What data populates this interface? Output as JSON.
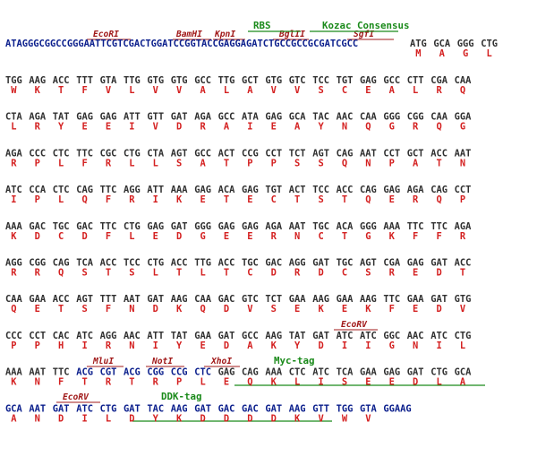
{
  "colors": {
    "nt_default": "#2f2f2f",
    "nt_vector": "#0a1e8c",
    "amino_acid": "#d42020",
    "restriction_site": "#a01818",
    "feature": "#1a8a1a"
  },
  "map": {
    "row1_5prime": "ATAGGGCGGCCGGGAATTCGTCGACTGGATCCGGTACCGAGGAGATCTGCCGCCGCGATCGCC",
    "row1_codons": [
      "ATG",
      "GCA",
      "GGG",
      "CTG"
    ],
    "row1_aa": [
      "M",
      "A",
      "G",
      "L"
    ],
    "rows": [
      {
        "codons": [
          "TGG",
          "AAG",
          "ACC",
          "TTT",
          "GTA",
          "TTG",
          "GTG",
          "GTG",
          "GCC",
          "TTG",
          "GCT",
          "GTG",
          "GTC",
          "TCC",
          "TGT",
          "GAG",
          "GCC",
          "CTT",
          "CGA",
          "CAA"
        ],
        "aa": [
          "W",
          "K",
          "T",
          "F",
          "V",
          "L",
          "V",
          "V",
          "A",
          "L",
          "A",
          "V",
          "V",
          "S",
          "C",
          "E",
          "A",
          "L",
          "R",
          "Q"
        ]
      },
      {
        "codons": [
          "CTA",
          "AGA",
          "TAT",
          "GAG",
          "GAG",
          "ATT",
          "GTT",
          "GAT",
          "AGA",
          "GCC",
          "ATA",
          "GAG",
          "GCA",
          "TAC",
          "AAC",
          "CAA",
          "GGG",
          "CGG",
          "CAA",
          "GGA"
        ],
        "aa": [
          "L",
          "R",
          "Y",
          "E",
          "E",
          "I",
          "V",
          "D",
          "R",
          "A",
          "I",
          "E",
          "A",
          "Y",
          "N",
          "Q",
          "G",
          "R",
          "Q",
          "G"
        ]
      },
      {
        "codons": [
          "AGA",
          "CCC",
          "CTC",
          "TTC",
          "CGC",
          "CTG",
          "CTA",
          "AGT",
          "GCC",
          "ACT",
          "CCG",
          "CCT",
          "TCT",
          "AGT",
          "CAG",
          "AAT",
          "CCT",
          "GCT",
          "ACC",
          "AAT"
        ],
        "aa": [
          "R",
          "P",
          "L",
          "F",
          "R",
          "L",
          "L",
          "S",
          "A",
          "T",
          "P",
          "P",
          "S",
          "S",
          "Q",
          "N",
          "P",
          "A",
          "T",
          "N"
        ]
      },
      {
        "codons": [
          "ATC",
          "CCA",
          "CTC",
          "CAG",
          "TTC",
          "AGG",
          "ATT",
          "AAA",
          "GAG",
          "ACA",
          "GAG",
          "TGT",
          "ACT",
          "TCC",
          "ACC",
          "CAG",
          "GAG",
          "AGA",
          "CAG",
          "CCT"
        ],
        "aa": [
          "I",
          "P",
          "L",
          "Q",
          "F",
          "R",
          "I",
          "K",
          "E",
          "T",
          "E",
          "C",
          "T",
          "S",
          "T",
          "Q",
          "E",
          "R",
          "Q",
          "P"
        ]
      },
      {
        "codons": [
          "AAA",
          "GAC",
          "TGC",
          "GAC",
          "TTC",
          "CTG",
          "GAG",
          "GAT",
          "GGG",
          "GAG",
          "GAG",
          "AGA",
          "AAT",
          "TGC",
          "ACA",
          "GGG",
          "AAA",
          "TTC",
          "TTC",
          "AGA"
        ],
        "aa": [
          "K",
          "D",
          "C",
          "D",
          "F",
          "L",
          "E",
          "D",
          "G",
          "E",
          "E",
          "R",
          "N",
          "C",
          "T",
          "G",
          "K",
          "F",
          "F",
          "R"
        ]
      },
      {
        "codons": [
          "AGG",
          "CGG",
          "CAG",
          "TCA",
          "ACC",
          "TCC",
          "CTG",
          "ACC",
          "TTG",
          "ACC",
          "TGC",
          "GAC",
          "AGG",
          "GAT",
          "TGC",
          "AGT",
          "CGA",
          "GAG",
          "GAT",
          "ACC"
        ],
        "aa": [
          "R",
          "R",
          "Q",
          "S",
          "T",
          "S",
          "L",
          "T",
          "L",
          "T",
          "C",
          "D",
          "R",
          "D",
          "C",
          "S",
          "R",
          "E",
          "D",
          "T"
        ]
      },
      {
        "codons": [
          "CAA",
          "GAA",
          "ACC",
          "AGT",
          "TTT",
          "AAT",
          "GAT",
          "AAG",
          "CAA",
          "GAC",
          "GTC",
          "TCT",
          "GAA",
          "AAG",
          "GAA",
          "AAG",
          "TTC",
          "GAA",
          "GAT",
          "GTG"
        ],
        "aa": [
          "Q",
          "E",
          "T",
          "S",
          "F",
          "N",
          "D",
          "K",
          "Q",
          "D",
          "V",
          "S",
          "E",
          "K",
          "E",
          "K",
          "F",
          "E",
          "D",
          "V"
        ]
      },
      {
        "codons": [
          "CCC",
          "CCT",
          "CAC",
          "ATC",
          "AGG",
          "AAC",
          "ATT",
          "TAT",
          "GAA",
          "GAT",
          "GCC",
          "AAG",
          "TAT",
          "GAT",
          "ATC",
          "ATC",
          "GGC",
          "AAC",
          "ATC",
          "CTG"
        ],
        "aa": [
          "P",
          "P",
          "H",
          "I",
          "R",
          "N",
          "I",
          "Y",
          "E",
          "D",
          "A",
          "K",
          "Y",
          "D",
          "I",
          "I",
          "G",
          "N",
          "I",
          "L"
        ]
      },
      {
        "codons": [
          "AAA",
          "AAT",
          "TTC",
          "ACG",
          "CGT",
          "ACG",
          "CGG",
          "CCG",
          "CTC",
          "GAG",
          "CAG",
          "AAA",
          "CTC",
          "ATC",
          "TCA",
          "GAA",
          "GAG",
          "GAT",
          "CTG",
          "GCA"
        ],
        "aa": [
          "K",
          "N",
          "F",
          "T",
          "R",
          "T",
          "R",
          "P",
          "L",
          "E",
          "Q",
          "K",
          "L",
          "I",
          "S",
          "E",
          "E",
          "D",
          "L",
          "A"
        ]
      },
      {
        "codons": [
          "GCA",
          "AAT",
          "GAT",
          "ATC",
          "CTG",
          "GAT",
          "TAC",
          "AAG",
          "GAT",
          "GAC",
          "GAC",
          "GAT",
          "AAG",
          "GTT",
          "TGG",
          "GTA",
          "GGAAG"
        ],
        "aa": [
          "A",
          "N",
          "D",
          "I",
          "L",
          "D",
          "Y",
          "K",
          "D",
          "D",
          "D",
          "D",
          "K",
          "V",
          "W",
          "V",
          ""
        ]
      }
    ],
    "labels": {
      "ecori": "EcoRI",
      "bamhi": "BamHI",
      "kpni": "KpnI",
      "bglii": "BglII",
      "sgfi": "SgfI",
      "ecorv": "EcoRV",
      "mlui": "MluI",
      "noti": "NotI",
      "xhoi": "XhoI",
      "rbs": "RBS",
      "kozac": "Kozac Consensus",
      "myc": "Myc-tag",
      "ddk": "DDK-tag"
    }
  }
}
